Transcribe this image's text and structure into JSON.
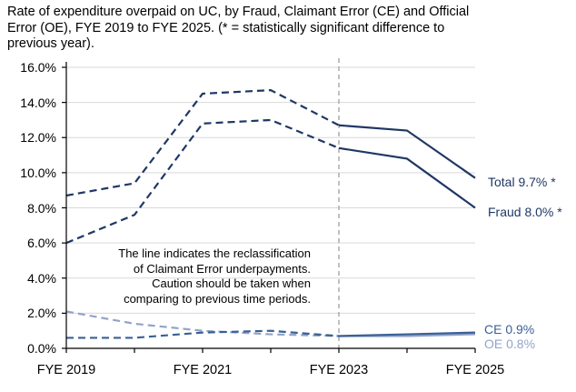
{
  "title": "Rate of expenditure overpaid on UC, by Fraud, Claimant Error (CE) and Official\nError (OE), FYE 2019 to FYE 2025. (* = statistically significant difference to\nprevious year).",
  "annotation": "The line indicates the reclassification\nof Claimant Error underpayments.\nCaution should be taken when\ncomparing to previous time periods.",
  "colors": {
    "dark_navy": "#1f3864",
    "ce_blue": "#3a6097",
    "oe_light_blue": "#93a4c7",
    "gridline": "#d9d9d9",
    "axis": "#000000",
    "reference_line": "#a6a6a6",
    "text": "#000000"
  },
  "chart_data": {
    "type": "line",
    "title": "Rate of expenditure overpaid on UC, by Fraud, Claimant Error (CE) and Official Error (OE), FYE 2019 to FYE 2025. (* = statistically significant difference to previous year).",
    "x": [
      "FYE 2019",
      "FYE 2020",
      "FYE 2021",
      "FYE 2022",
      "FYE 2023",
      "FYE 2024",
      "FYE 2025"
    ],
    "x_axis_labels": [
      "FYE 2019",
      "FYE 2021",
      "FYE 2023",
      "FYE 2025"
    ],
    "y_tick_labels": [
      "16.0%",
      "14.0%",
      "12.0%",
      "10.0%",
      "8.0%",
      "6.0%",
      "4.0%",
      "2.0%",
      "0.0%"
    ],
    "ylim": [
      0,
      16
    ],
    "grid": "horizontal",
    "legend_position": "end-of-line labels at right",
    "reference_line_x": "FYE 2023",
    "line_style_note": "all series dashed before FYE 2023, solid after",
    "series": [
      {
        "name": "Total",
        "end_label": "Total 9.7% *",
        "color": "#1f3864",
        "values": [
          8.7,
          9.4,
          14.5,
          14.7,
          12.7,
          12.4,
          9.7
        ]
      },
      {
        "name": "Fraud",
        "end_label": "Fraud 8.0% *",
        "color": "#1f3864",
        "values": [
          6.0,
          7.6,
          12.8,
          13.0,
          11.4,
          10.8,
          8.0
        ]
      },
      {
        "name": "OE",
        "end_label": "OE 0.8%",
        "color": "#93a4c7",
        "values": [
          2.1,
          1.4,
          1.0,
          0.8,
          0.7,
          0.7,
          0.8
        ]
      },
      {
        "name": "CE",
        "end_label": "CE 0.9%",
        "color": "#3a6097",
        "values": [
          0.6,
          0.6,
          0.9,
          1.0,
          0.7,
          0.8,
          0.9
        ]
      }
    ]
  }
}
